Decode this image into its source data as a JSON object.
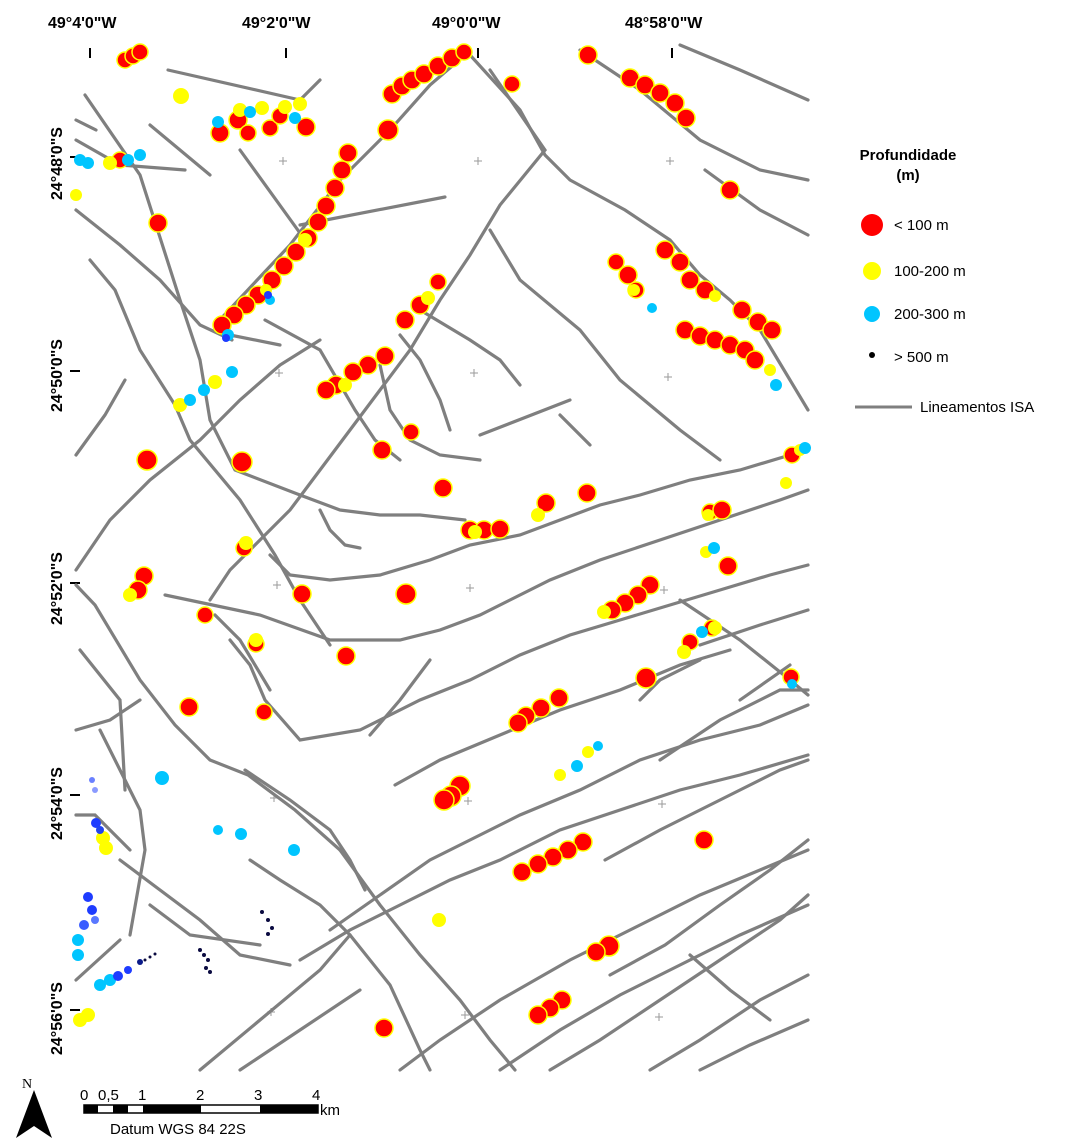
{
  "map": {
    "lon_labels": [
      "49°4'0\"W",
      "49°2'0\"W",
      "49°0'0\"W",
      "48°58'0\"W"
    ],
    "lat_labels": [
      "24°48'0\"S",
      "24°50'0\"S",
      "24°52'0\"S",
      "24°54'0\"S",
      "24°56'0\"S"
    ]
  },
  "legend": {
    "title_line1": "Profundidade",
    "title_line2": "(m)",
    "items": [
      {
        "label": "< 100 m",
        "color": "#ff0000"
      },
      {
        "label": "100-200 m",
        "color": "#ffff00"
      },
      {
        "label": "200-300 m",
        "color": "#00c5ff"
      },
      {
        "label": "> 500 m",
        "color": "#000000"
      }
    ],
    "line_label": "Lineamentos ISA",
    "line_color": "#7f7f7f"
  },
  "scale_bar": {
    "ticks": [
      "0",
      "0,5",
      "1",
      "2",
      "3",
      "4"
    ],
    "unit": "km",
    "datum": "Datum WGS 84 22S"
  },
  "north_arrow": {
    "label": "N"
  }
}
